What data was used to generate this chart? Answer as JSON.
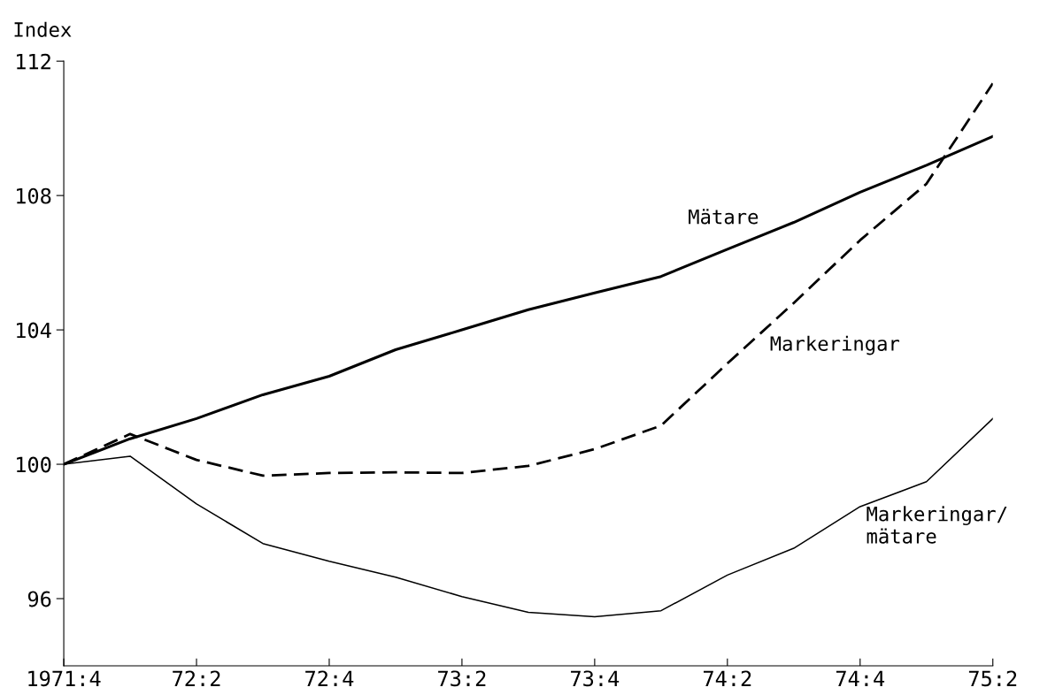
{
  "chart_data": {
    "type": "line",
    "ylabel": "Index",
    "categories": [
      "1971:4",
      null,
      "72:2",
      null,
      "72:4",
      null,
      "73:2",
      null,
      "73:4",
      null,
      "74:2",
      null,
      "74:4",
      null,
      "75:2"
    ],
    "series": [
      {
        "name": "Mätare",
        "color": "#000000",
        "line_style": "solid",
        "values": [
          100,
          100.76,
          101.36,
          102.07,
          102.62,
          103.41,
          104.0,
          104.6,
          105.1,
          105.59,
          106.4,
          107.2,
          108.1,
          108.9,
          109.76
        ]
      },
      {
        "name": "Markeringar",
        "color": "#000000",
        "line_style": "dashed",
        "values": [
          100,
          100.9,
          100.13,
          99.66,
          99.74,
          99.76,
          99.74,
          99.95,
          100.45,
          101.15,
          103.0,
          104.8,
          106.67,
          108.35,
          111.34
        ]
      },
      {
        "name": "Markeringar/\nmätare",
        "color": "#000000",
        "line_style": "solid",
        "values": [
          100,
          100.24,
          98.82,
          97.64,
          97.11,
          96.64,
          96.06,
          95.59,
          95.46,
          95.64,
          96.7,
          97.5,
          98.74,
          99.48,
          101.36
        ]
      }
    ],
    "ylim": [
      94,
      112
    ],
    "yticks": [
      96,
      100,
      104,
      108,
      112
    ],
    "grid": false,
    "legend": false,
    "marker": "none"
  }
}
